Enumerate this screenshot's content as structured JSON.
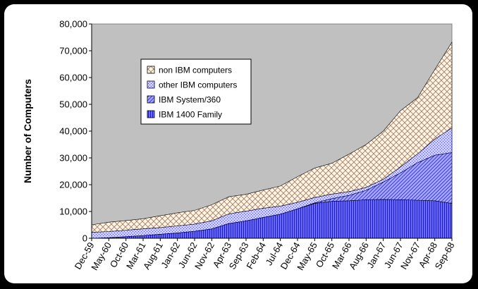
{
  "chart_data": {
    "type": "area",
    "stacked": true,
    "title": "",
    "xlabel": "",
    "ylabel": "Number of Computers",
    "ylim": [
      0,
      80000
    ],
    "yticks": [
      "0",
      "10,000",
      "20,000",
      "30,000",
      "40,000",
      "50,000",
      "60,000",
      "70,000",
      "80,000"
    ],
    "categories": [
      "Dec-59",
      "May-60",
      "Oct-60",
      "Mar-61",
      "Aug-61",
      "Jan-62",
      "Jun-62",
      "Nov-62",
      "Apr-63",
      "Sep-63",
      "Feb-64",
      "Jul-64",
      "Dec-64",
      "May-65",
      "Oct-65",
      "Mar-66",
      "Aug-66",
      "Jan-67",
      "Jun-67",
      "Nov-67",
      "Apr-68",
      "Sep-68"
    ],
    "grid": false,
    "legend_position": "upper-left-inside",
    "plot_background": "#c0c0c0",
    "series": [
      {
        "name": "IBM 1400 Family",
        "color": "#6b6bf5",
        "pattern": "vertical",
        "values": [
          0,
          200,
          600,
          1000,
          1500,
          2000,
          2600,
          3500,
          5500,
          6500,
          7800,
          9000,
          11000,
          13000,
          13800,
          14000,
          14400,
          14500,
          14400,
          14200,
          14000,
          13000
        ]
      },
      {
        "name": "IBM System/360",
        "color": "#a0a0ff",
        "pattern": "diagonal",
        "values": [
          0,
          0,
          0,
          0,
          0,
          0,
          0,
          0,
          0,
          0,
          0,
          0,
          0,
          200,
          1000,
          2000,
          3500,
          6500,
          10000,
          14000,
          17000,
          19000
        ]
      },
      {
        "name": "other IBM computers",
        "color": "#c8c8ff",
        "pattern": "dots",
        "values": [
          2200,
          2300,
          2400,
          2500,
          2500,
          2600,
          2700,
          3000,
          3600,
          3600,
          3400,
          3000,
          2400,
          2000,
          1700,
          1400,
          1100,
          1000,
          2200,
          3300,
          6000,
          9200
        ]
      },
      {
        "name": "non IBM computers",
        "color": "#ffe8c8",
        "pattern": "crosshatch",
        "values": [
          2800,
          3500,
          3600,
          3800,
          4400,
          4900,
          5100,
          6000,
          6400,
          6300,
          6800,
          7500,
          9600,
          11000,
          11500,
          14000,
          16000,
          18000,
          21000,
          21000,
          26000,
          32000
        ]
      }
    ]
  }
}
